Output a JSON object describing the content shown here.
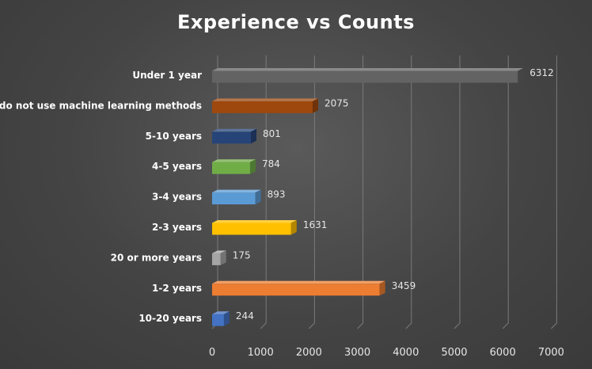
{
  "chart_data": {
    "type": "bar",
    "orientation": "horizontal",
    "title": "Experience vs Counts",
    "xlabel": "",
    "ylabel": "",
    "xlim": [
      0,
      7000
    ],
    "xticks": [
      0,
      1000,
      2000,
      3000,
      4000,
      5000,
      6000,
      7000
    ],
    "grid": true,
    "legend": "none",
    "categories": [
      "10-20 years",
      "1-2 years",
      "20 or more years",
      "2-3 years",
      "3-4 years",
      "4-5 years",
      "5-10 years",
      "I do not use machine learning methods",
      "Under 1 year"
    ],
    "values": [
      244,
      3459,
      175,
      1631,
      893,
      784,
      801,
      2075,
      6312
    ],
    "colors": [
      "#4472c4",
      "#ed7d31",
      "#a5a5a5",
      "#ffc000",
      "#5b9bd5",
      "#70ad47",
      "#264478",
      "#9e480e",
      "#636363"
    ]
  }
}
